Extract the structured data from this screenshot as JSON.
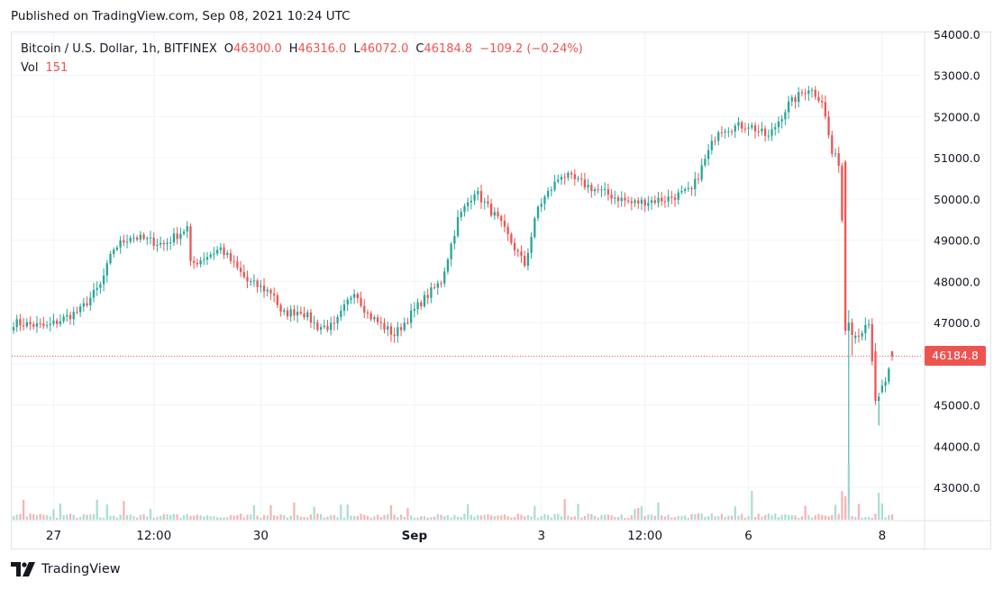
{
  "published": "Published on TradingView.com, Sep 08, 2021 10:24 UTC",
  "legend": {
    "symbol": "Bitcoin / U.S. Dollar, 1h, BITFINEX",
    "o_label": "O",
    "o_value": "46300.0",
    "h_label": "H",
    "h_value": "46316.0",
    "l_label": "L",
    "l_value": "46072.0",
    "c_label": "C",
    "c_value": "46184.8",
    "change": "−109.2 (−0.24%)",
    "vol_label": "Vol",
    "vol_value": "151"
  },
  "price_tag": "46184.8",
  "brand": "TradingView",
  "colors": {
    "up": "#26a69a",
    "down": "#ef5350",
    "grid": "#f0f3fa",
    "text": "#131722"
  },
  "chart_data": {
    "type": "candlestick",
    "title": "Bitcoin / U.S. Dollar, 1h, BITFINEX",
    "ylim": [
      42300,
      54200
    ],
    "y_ticks": [
      "54000.0",
      "53000.0",
      "52000.0",
      "51000.0",
      "50000.0",
      "49000.0",
      "48000.0",
      "47000.0",
      "45000.0",
      "44000.0",
      "43000.0"
    ],
    "x_ticks": [
      {
        "label": "27",
        "bold": false,
        "index": 12
      },
      {
        "label": "12:00",
        "bold": false,
        "index": 42
      },
      {
        "label": "30",
        "bold": false,
        "index": 74
      },
      {
        "label": "Sep",
        "bold": true,
        "index": 120
      },
      {
        "label": "3",
        "bold": false,
        "index": 158
      },
      {
        "label": "12:00",
        "bold": false,
        "index": 189
      },
      {
        "label": "6",
        "bold": false,
        "index": 220
      },
      {
        "label": "8",
        "bold": false,
        "index": 260
      }
    ],
    "anchors": [
      [
        0,
        47000
      ],
      [
        10,
        46900
      ],
      [
        20,
        47300
      ],
      [
        26,
        47900
      ],
      [
        30,
        48800
      ],
      [
        35,
        49100
      ],
      [
        45,
        48900
      ],
      [
        52,
        49300
      ],
      [
        53,
        48400
      ],
      [
        62,
        48800
      ],
      [
        70,
        48000
      ],
      [
        78,
        47700
      ],
      [
        80,
        47200
      ],
      [
        86,
        47300
      ],
      [
        91,
        46900
      ],
      [
        96,
        46900
      ],
      [
        102,
        47800
      ],
      [
        106,
        47200
      ],
      [
        114,
        46700
      ],
      [
        122,
        47500
      ],
      [
        128,
        48000
      ],
      [
        133,
        49500
      ],
      [
        138,
        50200
      ],
      [
        145,
        49500
      ],
      [
        153,
        48400
      ],
      [
        157,
        49800
      ],
      [
        164,
        50600
      ],
      [
        175,
        50200
      ],
      [
        185,
        49900
      ],
      [
        195,
        50000
      ],
      [
        203,
        50200
      ],
      [
        211,
        51700
      ],
      [
        220,
        51800
      ],
      [
        226,
        51500
      ],
      [
        232,
        52300
      ],
      [
        238,
        52700
      ],
      [
        242,
        52400
      ],
      [
        245,
        51100
      ],
      [
        247,
        50900
      ],
      [
        248,
        49500
      ],
      [
        249,
        46800
      ],
      [
        252,
        46700
      ],
      [
        256,
        46900
      ],
      [
        258,
        45100
      ],
      [
        261,
        45500
      ],
      [
        263,
        46184.8
      ]
    ],
    "last": {
      "open": 46300.0,
      "high": 46316.0,
      "low": 46072.0,
      "close": 46184.8,
      "volume": 151
    }
  }
}
